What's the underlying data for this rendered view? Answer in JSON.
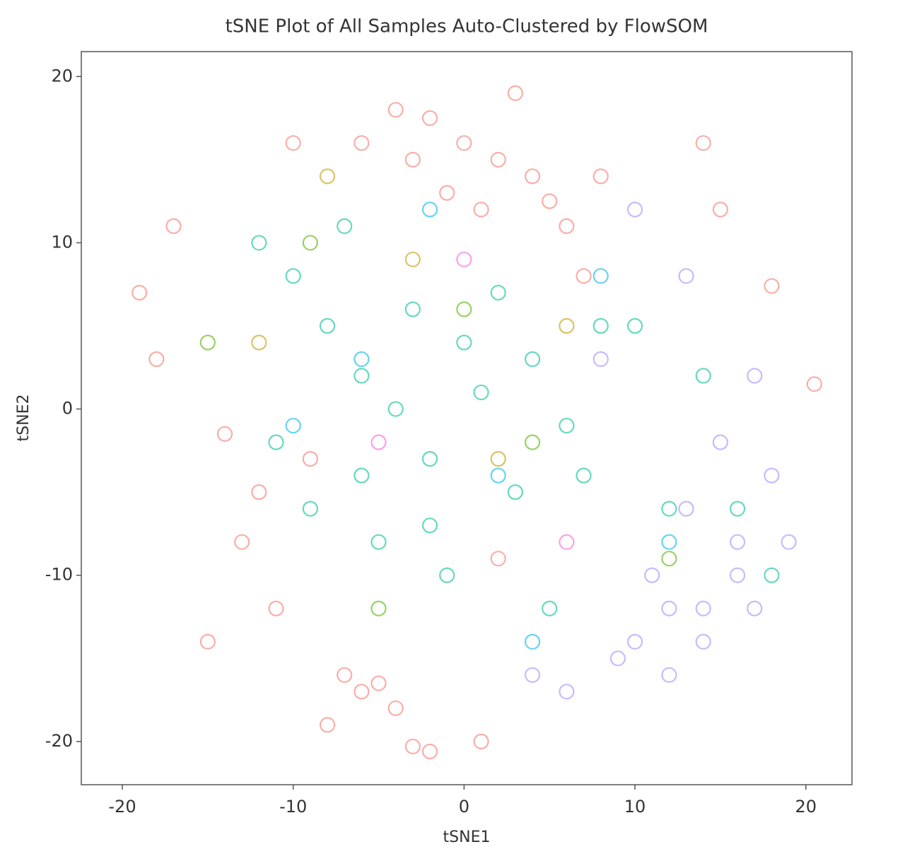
{
  "chart_data": {
    "type": "scatter",
    "title": "tSNE Plot of All Samples Auto-Clustered by FlowSOM",
    "x_label": "tSNE1",
    "y_label": "tSNE2",
    "xlim": [
      -22.4,
      22.7
    ],
    "ylim": [
      -22.6,
      21.5
    ],
    "xticks": [
      -20,
      -10,
      0,
      10,
      20
    ],
    "yticks": [
      -20,
      -10,
      0,
      10,
      20
    ],
    "grid": false,
    "legend": "right",
    "series": [
      {
        "color": "#F8766D",
        "x": [
          -4,
          -2,
          0,
          2,
          4,
          -1,
          1,
          3,
          5,
          -3,
          6,
          8,
          -6,
          -10,
          -17,
          -19,
          -18,
          -14,
          -12,
          -7,
          -6,
          -5,
          -4,
          -8,
          -3,
          -2,
          14,
          15,
          18,
          20.5,
          -15,
          -11,
          -9,
          -13,
          2,
          7,
          1
        ],
        "y": [
          18,
          17.5,
          16,
          15,
          14,
          13,
          12,
          19,
          12.5,
          15,
          11,
          14,
          16,
          16,
          11,
          7,
          3,
          -1.5,
          -5,
          -16,
          -17,
          -16.5,
          -18,
          -19,
          -20.3,
          -20.6,
          16,
          12,
          7.4,
          1.5,
          -14,
          -12,
          -3,
          -8,
          -9,
          8,
          -20
        ]
      },
      {
        "color": "#C49A00",
        "x": [
          -8,
          -3,
          2,
          6,
          -12
        ],
        "y": [
          14,
          9,
          -3,
          5,
          4
        ]
      },
      {
        "color": "#53B400",
        "x": [
          -15,
          -9,
          0,
          4,
          12,
          -5
        ],
        "y": [
          4,
          10,
          6,
          -2,
          -9,
          -12
        ]
      },
      {
        "color": "#00C094",
        "x": [
          -10,
          -8,
          -6,
          -4,
          -2,
          0,
          2,
          4,
          6,
          8,
          -12,
          -9,
          -5,
          -1,
          3,
          7,
          10,
          -7,
          -3,
          1,
          5,
          -11,
          -6,
          -2,
          14,
          16,
          18,
          12
        ],
        "y": [
          8,
          5,
          2,
          0,
          -3,
          4,
          7,
          3,
          -1,
          5,
          10,
          -6,
          -8,
          -10,
          -5,
          -4,
          5,
          11,
          6,
          1,
          -12,
          -2,
          -4,
          -7,
          2,
          -6,
          -10,
          -6
        ]
      },
      {
        "color": "#00B6EB",
        "x": [
          -6,
          2,
          8,
          -10,
          4,
          12,
          -2
        ],
        "y": [
          3,
          -4,
          8,
          -1,
          -14,
          -8,
          12
        ]
      },
      {
        "color": "#A58AFF",
        "x": [
          10,
          12,
          14,
          16,
          18,
          11,
          13,
          15,
          17,
          19,
          9,
          12,
          14,
          16,
          4,
          6,
          10,
          13,
          8,
          17
        ],
        "y": [
          -14,
          -16,
          -12,
          -8,
          -4,
          -10,
          -6,
          -2,
          2,
          -8,
          -15,
          -12,
          -14,
          -10,
          -16,
          -17,
          12,
          8,
          3,
          -12
        ]
      },
      {
        "color": "#FB61D7",
        "x": [
          -5,
          0,
          6
        ],
        "y": [
          -2,
          9,
          -8
        ]
      }
    ]
  }
}
